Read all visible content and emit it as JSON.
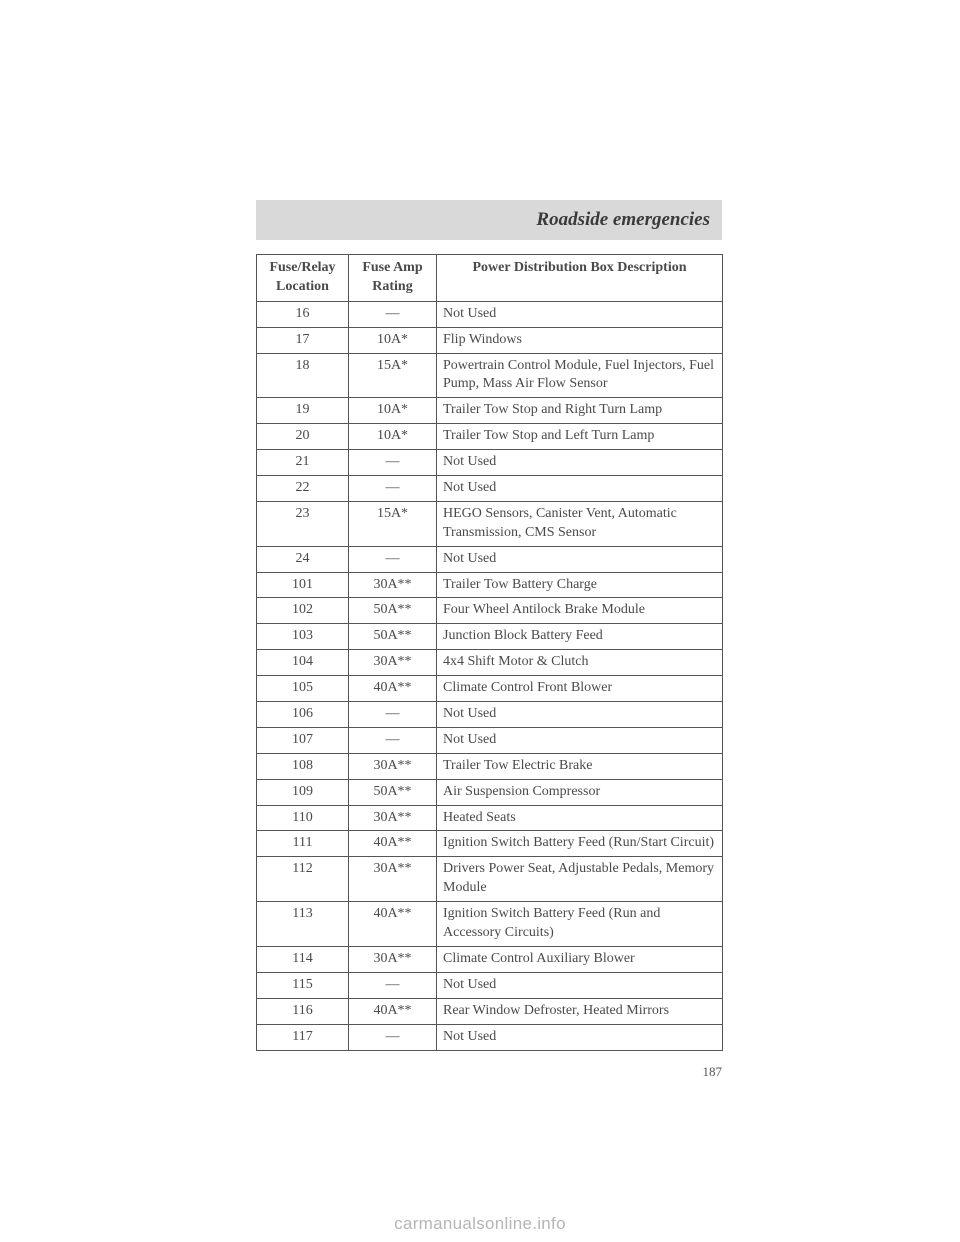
{
  "heading": "Roadside emergencies",
  "page_number": "187",
  "watermark": "carmanualsonline.info",
  "table": {
    "columns": [
      "Fuse/Relay Location",
      "Fuse Amp Rating",
      "Power Distribution Box Description"
    ],
    "rows": [
      [
        "16",
        "—",
        "Not Used"
      ],
      [
        "17",
        "10A*",
        "Flip Windows"
      ],
      [
        "18",
        "15A*",
        "Powertrain Control Module, Fuel Injectors, Fuel Pump, Mass Air Flow Sensor"
      ],
      [
        "19",
        "10A*",
        "Trailer Tow Stop and Right Turn Lamp"
      ],
      [
        "20",
        "10A*",
        "Trailer Tow Stop and Left Turn Lamp"
      ],
      [
        "21",
        "—",
        "Not Used"
      ],
      [
        "22",
        "—",
        "Not Used"
      ],
      [
        "23",
        "15A*",
        "HEGO Sensors, Canister Vent, Automatic Transmission, CMS Sensor"
      ],
      [
        "24",
        "—",
        "Not Used"
      ],
      [
        "101",
        "30A**",
        "Trailer Tow Battery Charge"
      ],
      [
        "102",
        "50A**",
        "Four Wheel Antilock Brake Module"
      ],
      [
        "103",
        "50A**",
        "Junction Block Battery Feed"
      ],
      [
        "104",
        "30A**",
        "4x4 Shift Motor & Clutch"
      ],
      [
        "105",
        "40A**",
        "Climate Control Front Blower"
      ],
      [
        "106",
        "—",
        "Not Used"
      ],
      [
        "107",
        "—",
        "Not Used"
      ],
      [
        "108",
        "30A**",
        "Trailer Tow Electric Brake"
      ],
      [
        "109",
        "50A**",
        "Air Suspension Compressor"
      ],
      [
        "110",
        "30A**",
        "Heated Seats"
      ],
      [
        "111",
        "40A**",
        "Ignition Switch Battery Feed (Run/Start Circuit)"
      ],
      [
        "112",
        "30A**",
        "Drivers Power Seat, Adjustable Pedals, Memory Module"
      ],
      [
        "113",
        "40A**",
        "Ignition Switch Battery Feed (Run and Accessory Circuits)"
      ],
      [
        "114",
        "30A**",
        "Climate Control Auxiliary Blower"
      ],
      [
        "115",
        "—",
        "Not Used"
      ],
      [
        "116",
        "40A**",
        "Rear Window Defroster, Heated Mirrors"
      ],
      [
        "117",
        "—",
        "Not Used"
      ]
    ]
  },
  "style": {
    "page_bg": "#ffffff",
    "heading_bg": "#d9d9d9",
    "heading_color": "#3a3a3a",
    "border_color": "#555555",
    "text_color": "#4a4a4a",
    "font_family": "Times New Roman",
    "heading_fontsize_pt": 14,
    "cell_fontsize_pt": 10.5
  }
}
